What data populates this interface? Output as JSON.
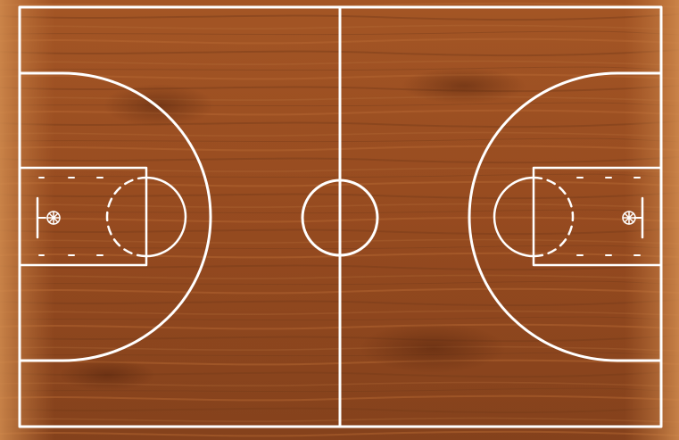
{
  "court": {
    "surface": "hardwood",
    "line_color": "#ffffff",
    "wood_colors": {
      "base": "#8f451c",
      "light": "#b76632",
      "dark": "#5f2a10",
      "edge": "#c57a3d"
    }
  },
  "icons": {
    "left_basket": "basketball-hoop",
    "right_basket": "basketball-hoop"
  }
}
